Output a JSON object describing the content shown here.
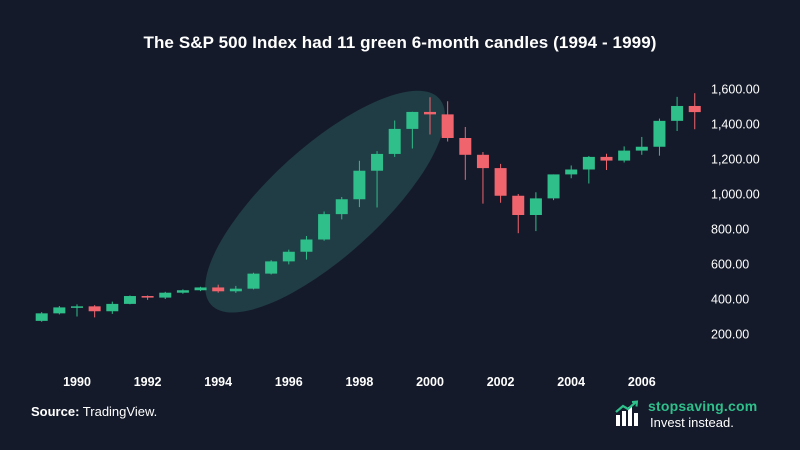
{
  "chart_data": {
    "type": "candlestick",
    "title": "The S&P 500 Index had 11 green 6-month candles (1994 - 1999)",
    "y_axis": {
      "position": "right",
      "ticks": [
        "200.00",
        "400.00",
        "600.00",
        "800.00",
        "1,000.00",
        "1,200.00",
        "1,400.00",
        "1,600.00"
      ],
      "tick_values": [
        200,
        400,
        600,
        800,
        1000,
        1200,
        1400,
        1600
      ]
    },
    "x_axis": {
      "ticks": [
        "1990",
        "1992",
        "1994",
        "1996",
        "1998",
        "2000",
        "2002",
        "2004",
        "2006"
      ],
      "tick_values": [
        1990,
        1992,
        1994,
        1996,
        1998,
        2000,
        2002,
        2004,
        2006
      ]
    },
    "colors": {
      "up": "#2fbf8a",
      "down": "#f0646e",
      "highlight": "#2a5a5a"
    },
    "highlight_range": [
      1994.5,
      1999.5
    ],
    "candles": [
      {
        "t": 1989.0,
        "o": 275,
        "h": 325,
        "l": 270,
        "c": 318
      },
      {
        "t": 1989.5,
        "o": 318,
        "h": 360,
        "l": 312,
        "c": 352
      },
      {
        "t": 1990.0,
        "o": 352,
        "h": 369,
        "l": 300,
        "c": 358
      },
      {
        "t": 1990.5,
        "o": 358,
        "h": 365,
        "l": 295,
        "c": 330
      },
      {
        "t": 1991.0,
        "o": 330,
        "h": 385,
        "l": 315,
        "c": 372
      },
      {
        "t": 1991.5,
        "o": 372,
        "h": 420,
        "l": 370,
        "c": 417
      },
      {
        "t": 1992.0,
        "o": 417,
        "h": 420,
        "l": 395,
        "c": 408
      },
      {
        "t": 1992.5,
        "o": 408,
        "h": 441,
        "l": 400,
        "c": 436
      },
      {
        "t": 1993.0,
        "o": 436,
        "h": 455,
        "l": 430,
        "c": 450
      },
      {
        "t": 1993.5,
        "o": 450,
        "h": 470,
        "l": 445,
        "c": 466
      },
      {
        "t": 1994.0,
        "o": 466,
        "h": 482,
        "l": 436,
        "c": 444
      },
      {
        "t": 1994.5,
        "o": 444,
        "h": 475,
        "l": 435,
        "c": 459
      },
      {
        "t": 1995.0,
        "o": 459,
        "h": 550,
        "l": 455,
        "c": 545
      },
      {
        "t": 1995.5,
        "o": 545,
        "h": 622,
        "l": 540,
        "c": 615
      },
      {
        "t": 1996.0,
        "o": 615,
        "h": 682,
        "l": 598,
        "c": 670
      },
      {
        "t": 1996.5,
        "o": 670,
        "h": 760,
        "l": 625,
        "c": 740
      },
      {
        "t": 1997.0,
        "o": 740,
        "h": 900,
        "l": 733,
        "c": 885
      },
      {
        "t": 1997.5,
        "o": 885,
        "h": 983,
        "l": 855,
        "c": 970
      },
      {
        "t": 1998.0,
        "o": 970,
        "h": 1190,
        "l": 925,
        "c": 1133
      },
      {
        "t": 1998.5,
        "o": 1133,
        "h": 1245,
        "l": 923,
        "c": 1229
      },
      {
        "t": 1999.0,
        "o": 1229,
        "h": 1420,
        "l": 1212,
        "c": 1372
      },
      {
        "t": 1999.5,
        "o": 1372,
        "h": 1470,
        "l": 1260,
        "c": 1469
      },
      {
        "t": 2000.0,
        "o": 1469,
        "h": 1553,
        "l": 1340,
        "c": 1455
      },
      {
        "t": 2000.5,
        "o": 1455,
        "h": 1530,
        "l": 1300,
        "c": 1320
      },
      {
        "t": 2001.0,
        "o": 1320,
        "h": 1383,
        "l": 1081,
        "c": 1224
      },
      {
        "t": 2001.5,
        "o": 1224,
        "h": 1240,
        "l": 945,
        "c": 1148
      },
      {
        "t": 2002.0,
        "o": 1148,
        "h": 1172,
        "l": 950,
        "c": 990
      },
      {
        "t": 2002.5,
        "o": 990,
        "h": 1000,
        "l": 776,
        "c": 880
      },
      {
        "t": 2003.0,
        "o": 880,
        "h": 1010,
        "l": 788,
        "c": 975
      },
      {
        "t": 2003.5,
        "o": 975,
        "h": 1112,
        "l": 965,
        "c": 1112
      },
      {
        "t": 2004.0,
        "o": 1112,
        "h": 1163,
        "l": 1090,
        "c": 1140
      },
      {
        "t": 2004.5,
        "o": 1140,
        "h": 1217,
        "l": 1060,
        "c": 1212
      },
      {
        "t": 2005.0,
        "o": 1212,
        "h": 1230,
        "l": 1137,
        "c": 1191
      },
      {
        "t": 2005.5,
        "o": 1191,
        "h": 1272,
        "l": 1180,
        "c": 1248
      },
      {
        "t": 2006.0,
        "o": 1248,
        "h": 1326,
        "l": 1224,
        "c": 1270
      },
      {
        "t": 2006.5,
        "o": 1270,
        "h": 1431,
        "l": 1219,
        "c": 1418
      },
      {
        "t": 2007.0,
        "o": 1418,
        "h": 1555,
        "l": 1360,
        "c": 1503
      },
      {
        "t": 2007.5,
        "o": 1503,
        "h": 1576,
        "l": 1370,
        "c": 1468
      }
    ]
  },
  "footer": {
    "source_label": "Source:",
    "source_value": "TradingView.",
    "brand_name": "stopsaving.com",
    "brand_tagline": "Invest instead."
  }
}
